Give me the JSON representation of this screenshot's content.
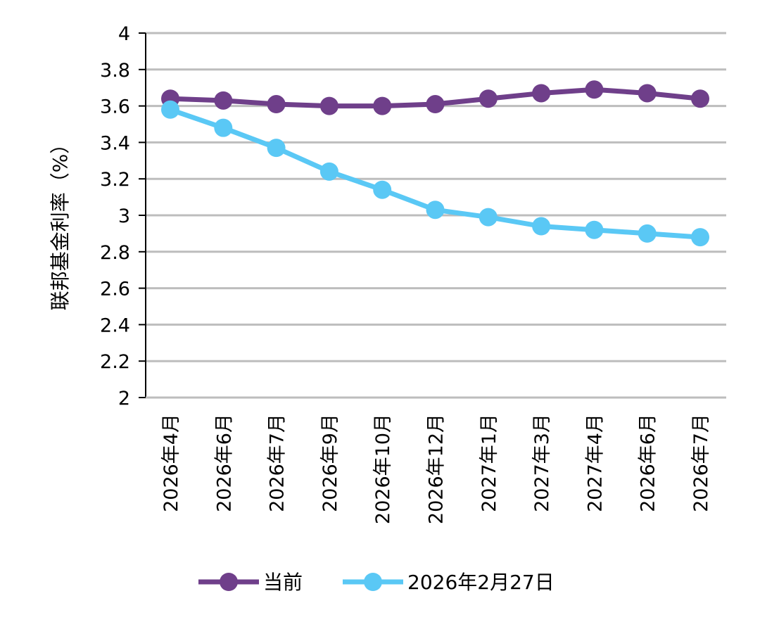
{
  "chart_data": {
    "type": "line",
    "ylabel": "联邦基金利率（%）",
    "ylim": [
      2,
      4
    ],
    "ytick_step": 0.2,
    "yticks": [
      "2",
      "2.2",
      "2.4",
      "2.6",
      "2.8",
      "3",
      "3.2",
      "3.4",
      "3.6",
      "3.8",
      "4"
    ],
    "grid": true,
    "legend_position": "bottom",
    "categories": [
      "2026年4月",
      "2026年6月",
      "2026年7月",
      "2026年9月",
      "2026年10月",
      "2026年12月",
      "2027年1月",
      "2027年3月",
      "2027年4月",
      "2026年6月",
      "2026年7月"
    ],
    "series": [
      {
        "name": "当前",
        "color": "#6f3f8a",
        "values": [
          3.64,
          3.63,
          3.61,
          3.6,
          3.6,
          3.61,
          3.64,
          3.67,
          3.69,
          3.67,
          3.64
        ]
      },
      {
        "name": "2026年2月27日",
        "color": "#5ac8f5",
        "values": [
          3.58,
          3.48,
          3.37,
          3.24,
          3.14,
          3.03,
          2.99,
          2.94,
          2.92,
          2.9,
          2.88
        ]
      }
    ]
  }
}
